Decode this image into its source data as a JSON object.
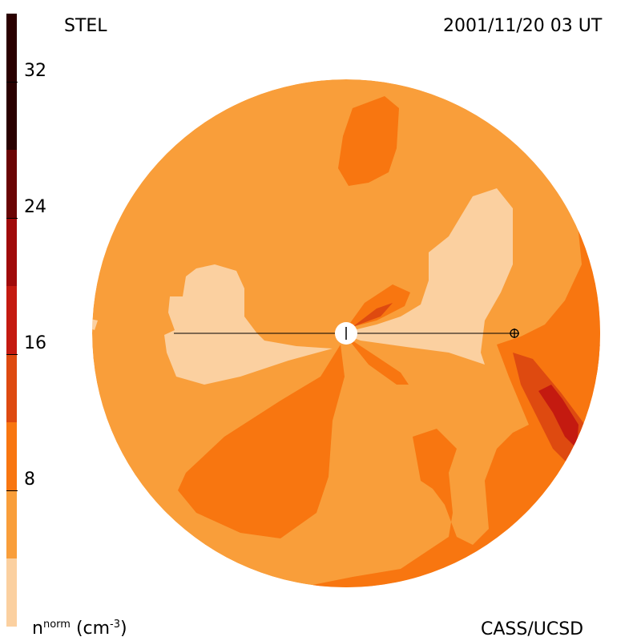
{
  "header": {
    "instrument": "STEL",
    "timestamp": "2001/11/20 03 UT"
  },
  "footer": {
    "credit": "CASS/UCSD",
    "unit_base": "n",
    "unit_sup": "norm",
    "unit_paren_open": "(cm",
    "unit_exp": "-3",
    "unit_paren_close": ")"
  },
  "colorbar": {
    "levels": [
      {
        "from": 0,
        "to": 4,
        "color": "#fbd0a0"
      },
      {
        "from": 4,
        "to": 8,
        "color": "#f99e3a"
      },
      {
        "from": 8,
        "to": 12,
        "color": "#f87610"
      },
      {
        "from": 12,
        "to": 16,
        "color": "#de4a10"
      },
      {
        "from": 16,
        "to": 20,
        "color": "#c41a10"
      },
      {
        "from": 20,
        "to": 24,
        "color": "#a00a0a"
      },
      {
        "from": 24,
        "to": 28,
        "color": "#6a0404"
      },
      {
        "from": 28,
        "to": 36,
        "color": "#2a0000"
      }
    ],
    "ticks": [
      "8",
      "16",
      "24",
      "32"
    ],
    "range": [
      0,
      36
    ]
  },
  "colors": {
    "background_field": "#f99e3a",
    "low_density": "#fbd0a0",
    "moderate": "#f87610",
    "high": "#de4a10",
    "peak": "#c41a10",
    "sun": "#ffffff",
    "earth_line": "#000000"
  },
  "symbols": {
    "sun_marker": "sun-icon",
    "earth_marker": "earth-icon"
  }
}
